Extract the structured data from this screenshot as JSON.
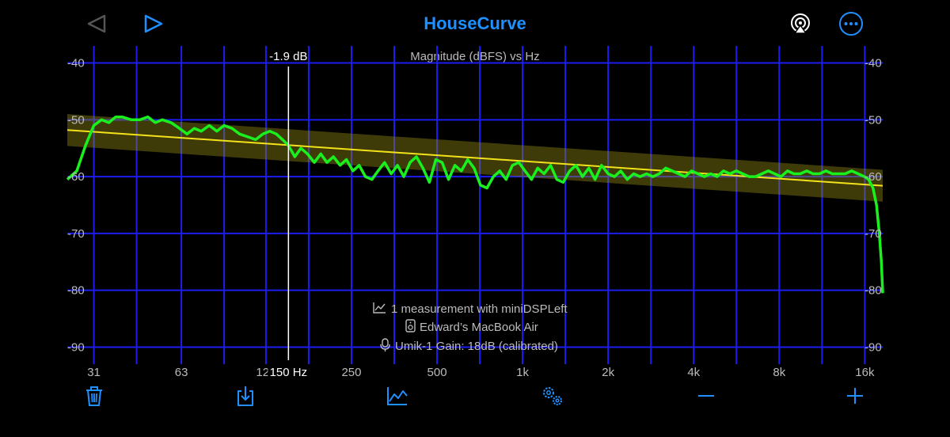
{
  "app": {
    "title": "HouseCurve"
  },
  "toolbar": {
    "icons": [
      "back-icon",
      "play-icon",
      "airplay-icon",
      "more-icon",
      "trash-icon",
      "export-icon",
      "chart-icon",
      "settings-icon",
      "minus-icon",
      "plus-icon"
    ]
  },
  "chart_data": {
    "type": "line",
    "title": "Magnitude (dBFS) vs Hz",
    "xlabel": "",
    "ylabel": "",
    "x_scale": "log",
    "xlim": [
      25,
      18500
    ],
    "ylim": [
      -93,
      -37
    ],
    "x_ticks": [
      31,
      63,
      125,
      250,
      500,
      1000,
      2000,
      4000,
      8000,
      16000
    ],
    "x_tick_labels": [
      "31",
      "63",
      "125",
      "250",
      "500",
      "1k",
      "2k",
      "4k",
      "8k",
      "16k"
    ],
    "y_ticks": [
      -40,
      -50,
      -60,
      -70,
      -80,
      -90
    ],
    "y_tick_labels": [
      "-40",
      "-50",
      "-60",
      "-70",
      "-80",
      "-90"
    ],
    "grid": true,
    "cursor": {
      "freq": 150,
      "freq_label": "150 Hz",
      "value_label": "-1.9 dB"
    },
    "target_curve": {
      "x": [
        25,
        18500
      ],
      "y": [
        -51.8,
        -61.6
      ],
      "band": 2.8
    },
    "series": [
      {
        "x": [
          25,
          27,
          29,
          31,
          33,
          35,
          37,
          39,
          42,
          45,
          48,
          51,
          54,
          58,
          62,
          66,
          70,
          74,
          79,
          84,
          89,
          95,
          101,
          108,
          115,
          122,
          129,
          136,
          143,
          150,
          158,
          166,
          175,
          185,
          195,
          205,
          216,
          228,
          240,
          253,
          266,
          280,
          295,
          310,
          327,
          345,
          363,
          382,
          402,
          423,
          446,
          470,
          495,
          521,
          549,
          578,
          609,
          641,
          675,
          711,
          749,
          789,
          831,
          875,
          921,
          970,
          1020,
          1075,
          1130,
          1190,
          1255,
          1320,
          1390,
          1465,
          1540,
          1625,
          1710,
          1800,
          1895,
          2000,
          2105,
          2215,
          2335,
          2460,
          2590,
          2730,
          2875,
          3025,
          3190,
          3360,
          3540,
          3730,
          3930,
          4140,
          4360,
          4590,
          4835,
          5090,
          5360,
          5650,
          5950,
          6270,
          6600,
          6950,
          7320,
          7710,
          8120,
          8550,
          9010,
          9490,
          10000,
          10530,
          11090,
          11680,
          12300,
          12960,
          13650,
          14380,
          15150,
          15960,
          16500,
          17100,
          17600,
          18000,
          18300,
          18500
        ],
        "y": [
          -60.5,
          -59.0,
          -54.5,
          -51.0,
          -50.0,
          -50.5,
          -49.5,
          -49.5,
          -50.0,
          -50.0,
          -49.5,
          -50.5,
          -50.0,
          -50.5,
          -51.5,
          -52.5,
          -51.5,
          -52.0,
          -51.0,
          -52.0,
          -51.0,
          -51.5,
          -52.5,
          -53.0,
          -53.5,
          -52.5,
          -52.0,
          -52.5,
          -53.5,
          -54.5,
          -56.5,
          -55.0,
          -56.0,
          -57.5,
          -56.0,
          -57.5,
          -56.5,
          -58.0,
          -57.0,
          -59.0,
          -58.0,
          -60.0,
          -60.5,
          -59.0,
          -57.5,
          -59.5,
          -58.0,
          -60.0,
          -57.5,
          -56.5,
          -58.5,
          -61.0,
          -57.0,
          -57.5,
          -60.5,
          -58.0,
          -59.0,
          -57.0,
          -58.5,
          -61.5,
          -62.0,
          -60.0,
          -59.0,
          -60.5,
          -58.0,
          -57.5,
          -59.0,
          -60.5,
          -58.5,
          -59.5,
          -58.0,
          -60.5,
          -61.0,
          -59.0,
          -58.0,
          -60.0,
          -58.5,
          -60.5,
          -58.0,
          -59.5,
          -60.0,
          -59.0,
          -60.5,
          -59.5,
          -60.0,
          -59.5,
          -60.0,
          -59.5,
          -58.5,
          -59.0,
          -59.5,
          -60.0,
          -59.0,
          -59.5,
          -60.0,
          -59.5,
          -60.0,
          -59.0,
          -59.5,
          -59.0,
          -59.5,
          -60.0,
          -60.0,
          -59.5,
          -59.0,
          -59.5,
          -60.0,
          -59.0,
          -59.5,
          -59.5,
          -59.0,
          -59.5,
          -59.5,
          -59.0,
          -59.5,
          -59.5,
          -59.5,
          -59.0,
          -59.5,
          -60.0,
          -60.5,
          -62.0,
          -65.0,
          -70.0,
          -75.0,
          -80.5
        ]
      }
    ],
    "info_lines": [
      {
        "icon": "chart-line-icon",
        "text": "1 measurement with miniDSPLeft"
      },
      {
        "icon": "speaker-icon",
        "text": "Edward’s MacBook Air"
      },
      {
        "icon": "microphone-icon",
        "text": "Umik-1  Gain: 18dB (calibrated)"
      }
    ]
  }
}
